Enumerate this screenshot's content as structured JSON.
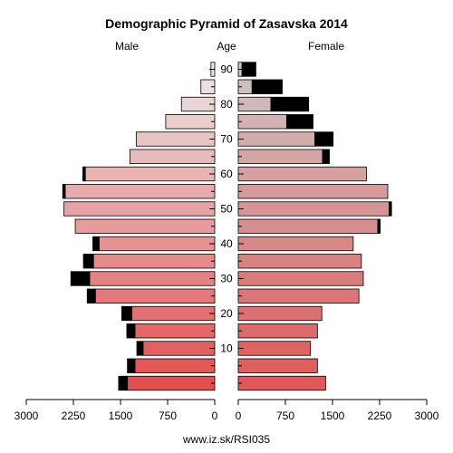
{
  "chart_data": {
    "type": "bar",
    "title": "Demographic Pyramid of Zasavska 2014",
    "left_header": "Male",
    "center_header": "Age",
    "right_header": "Female",
    "footer": "www.iz.sk/RSI035",
    "age_ticks": [
      "10",
      "20",
      "30",
      "40",
      "50",
      "60",
      "70",
      "80",
      "90"
    ],
    "x_ticks_left": [
      "3000",
      "2250",
      "1500",
      "750",
      "0"
    ],
    "x_ticks_right": [
      "0",
      "750",
      "1500",
      "2250",
      "3000"
    ],
    "xlim": [
      0,
      3000
    ],
    "age_groups": [
      "0-4",
      "5-9",
      "10-14",
      "15-19",
      "20-24",
      "25-29",
      "30-34",
      "35-39",
      "40-44",
      "45-49",
      "50-54",
      "55-59",
      "60-64",
      "65-69",
      "70-74",
      "75-79",
      "80-84",
      "85-89",
      "90+"
    ],
    "series": [
      {
        "name": "Male",
        "values": [
          1390,
          1270,
          1140,
          1270,
          1320,
          1900,
          1990,
          1930,
          1840,
          2220,
          2400,
          2380,
          2060,
          1350,
          1250,
          780,
          530,
          220,
          60
        ]
      },
      {
        "name": "Male",
        "values": [
          140,
          120,
          100,
          130,
          160,
          130,
          300,
          160,
          100,
          0,
          0,
          40,
          40,
          0,
          0,
          0,
          0,
          0,
          0
        ]
      },
      {
        "name": "Female",
        "values": [
          1390,
          1260,
          1150,
          1260,
          1330,
          1920,
          1990,
          1960,
          1830,
          2220,
          2400,
          2380,
          2040,
          1340,
          1220,
          770,
          520,
          220,
          60
        ]
      },
      {
        "name": "Female",
        "values": [
          0,
          0,
          0,
          0,
          0,
          0,
          0,
          0,
          0,
          40,
          40,
          0,
          0,
          110,
          290,
          420,
          600,
          480,
          220
        ]
      }
    ],
    "colors": {
      "male_young": "#e24f4f",
      "male_old": "#ebe6e6",
      "female_young": "#e05858",
      "female_old": "#cfc4c4",
      "excess": "#000000",
      "stroke": "#000000"
    }
  }
}
